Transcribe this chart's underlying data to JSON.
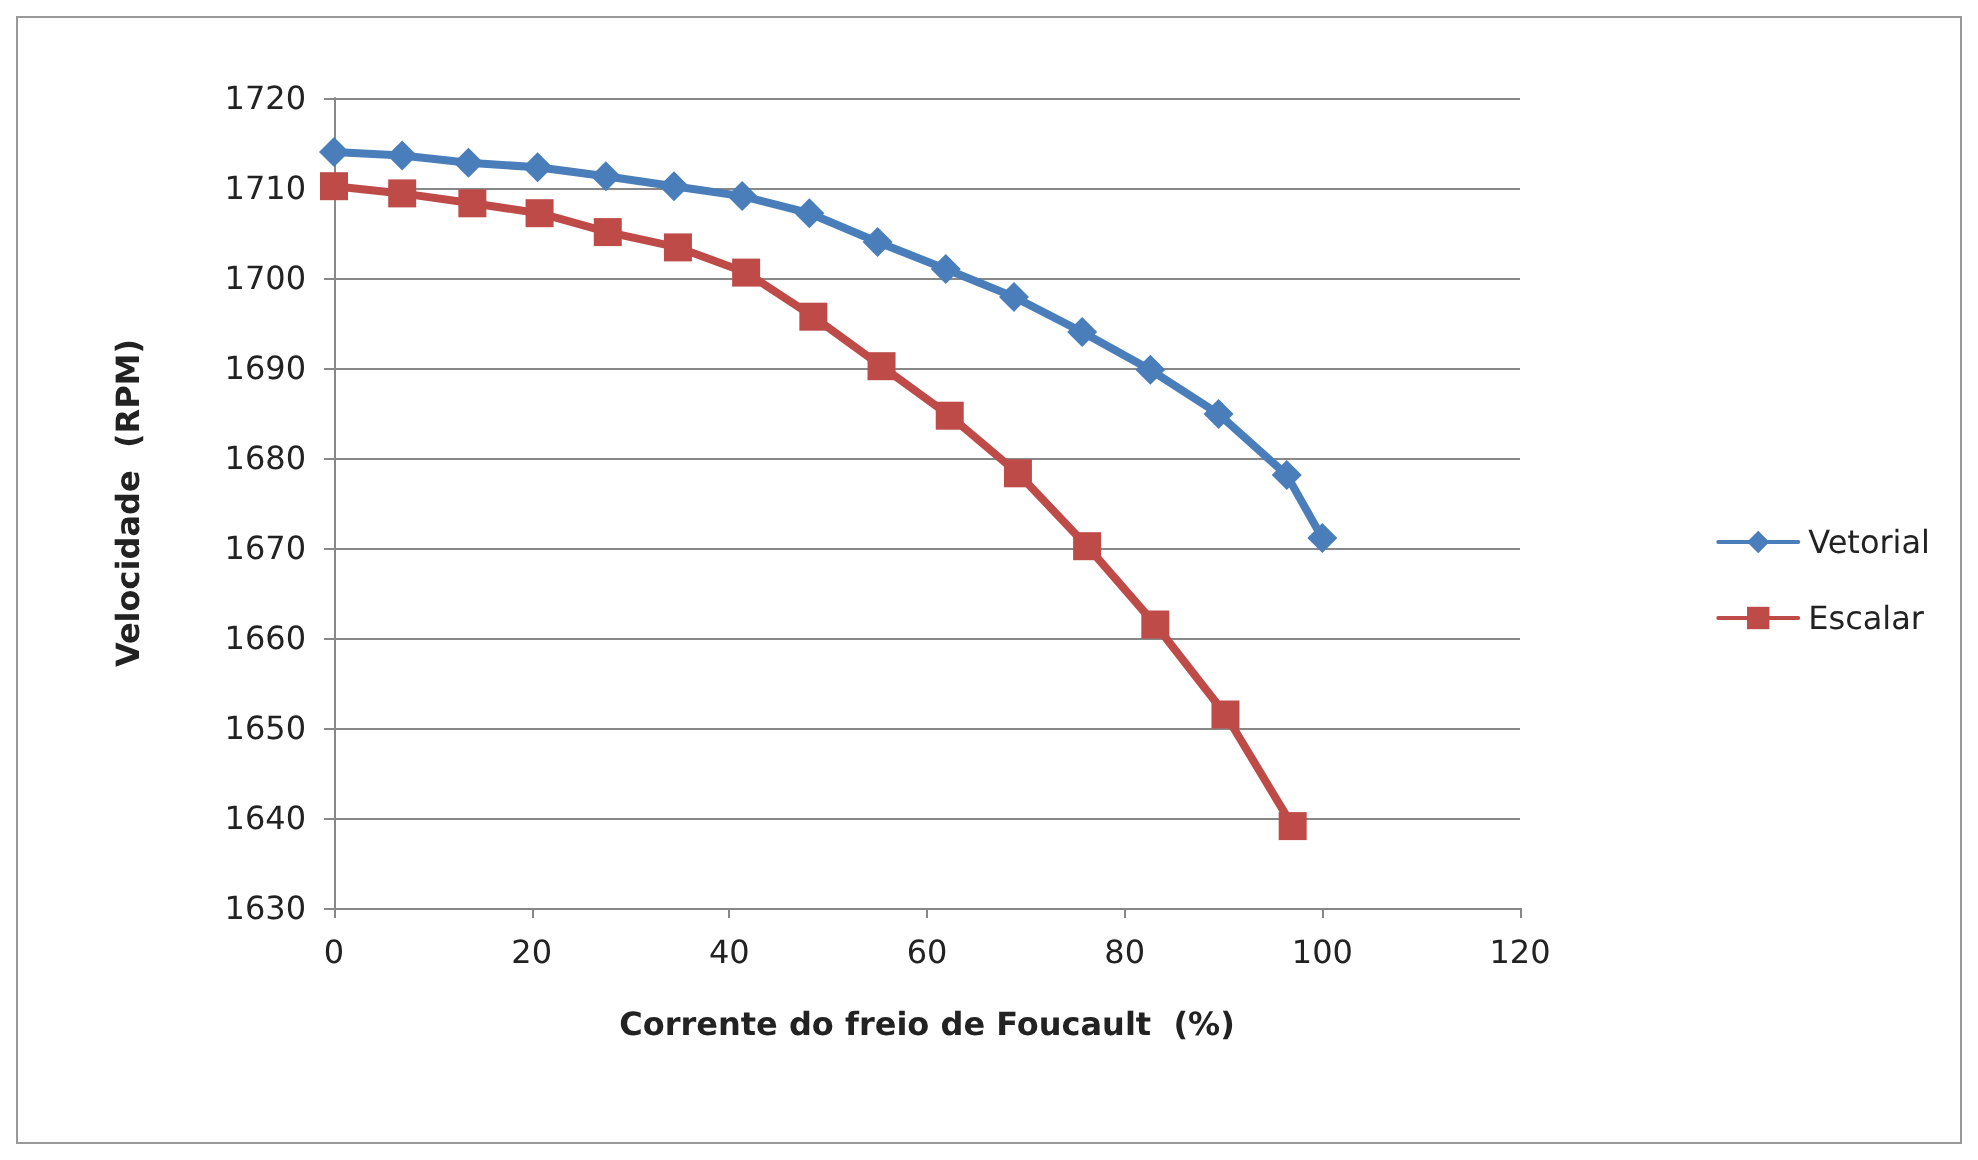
{
  "chart_data": {
    "type": "line",
    "xlabel": "Corrente do freio de Foucault  (%)",
    "ylabel": "Velocidade  (RPM)",
    "xlim": [
      0,
      120
    ],
    "xticks": [
      0,
      20,
      40,
      60,
      80,
      100,
      120
    ],
    "ylim": [
      1630,
      1720
    ],
    "yticks": [
      1630,
      1640,
      1650,
      1660,
      1670,
      1680,
      1690,
      1700,
      1710,
      1720
    ],
    "grid": "y",
    "legend": "right",
    "line_style": "solid",
    "series": [
      {
        "name": "Vetorial",
        "color": "#4a7ebb",
        "marker": "diamond",
        "x": [
          0,
          6.9,
          13.6,
          20.6,
          27.5,
          34.4,
          41.3,
          48.1,
          55,
          61.9,
          68.8,
          75.7,
          82.6,
          89.5,
          96.4,
          100
        ],
        "values": [
          1714,
          1713.6,
          1712.8,
          1712.3,
          1711.3,
          1710.2,
          1709.1,
          1707.2,
          1704,
          1701,
          1697.9,
          1694,
          1689.8,
          1684.9,
          1678.1,
          1671.1
        ]
      },
      {
        "name": "Escalar",
        "color": "#be4b48",
        "marker": "square",
        "x": [
          0,
          6.9,
          14,
          20.8,
          27.7,
          34.8,
          41.7,
          48.5,
          55.4,
          62.3,
          69.2,
          76.2,
          83.1,
          90.2,
          97
        ],
        "values": [
          1710.2,
          1709.4,
          1708.3,
          1707.2,
          1705.1,
          1703.4,
          1700.6,
          1695.7,
          1690.2,
          1684.7,
          1678.3,
          1670.2,
          1661.5,
          1651.5,
          1639.1
        ]
      }
    ]
  }
}
